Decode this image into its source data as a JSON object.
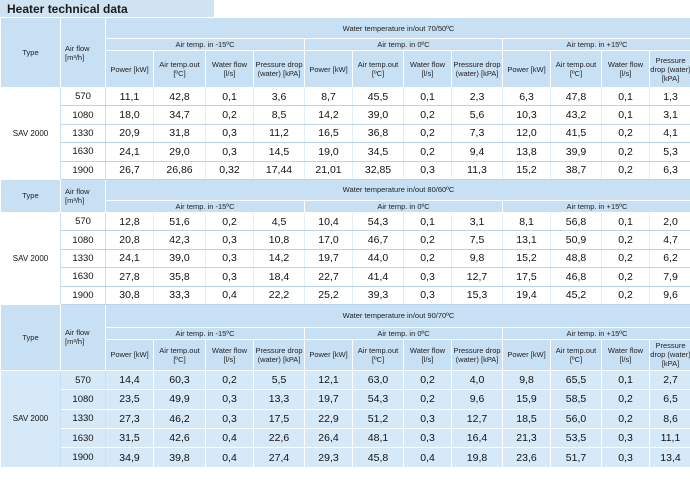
{
  "title": "Heater technical data",
  "labels": {
    "type": "Type",
    "airflow": "Air flow [m³/h]",
    "air_m15": "Air temp. in -15ºC",
    "air_0": "Air temp. in 0ºC",
    "air_p15": "Air temp. in +15ºC",
    "power": "Power [kW]",
    "temp_out": "Air temp.out [ºC]",
    "water_flow": "Water flow [l/s]",
    "pressure_drop": "Pressure drop (water) [kPA]"
  },
  "blocks": [
    {
      "water_temp": "Water temperature in/out 70/50ºC",
      "type": "SAV 2000",
      "rows": [
        {
          "airflow": "570",
          "values": [
            "11,1",
            "42,8",
            "0,1",
            "3,6",
            "8,7",
            "45,5",
            "0,1",
            "2,3",
            "6,3",
            "47,8",
            "0,1",
            "1,3"
          ]
        },
        {
          "airflow": "1080",
          "values": [
            "18,0",
            "34,7",
            "0,2",
            "8,5",
            "14,2",
            "39,0",
            "0,2",
            "5,6",
            "10,3",
            "43,2",
            "0,1",
            "3,1"
          ]
        },
        {
          "airflow": "1330",
          "values": [
            "20,9",
            "31,8",
            "0,3",
            "11,2",
            "16,5",
            "36,8",
            "0,2",
            "7,3",
            "12,0",
            "41,5",
            "0,2",
            "4,1"
          ]
        },
        {
          "airflow": "1630",
          "values": [
            "24,1",
            "29,0",
            "0,3",
            "14,5",
            "19,0",
            "34,5",
            "0,2",
            "9,4",
            "13,8",
            "39,9",
            "0,2",
            "5,3"
          ]
        },
        {
          "airflow": "1900",
          "values": [
            "26,7",
            "26,86",
            "0,32",
            "17,44",
            "21,01",
            "32,85",
            "0,3",
            "11,3",
            "15,2",
            "38,7",
            "0,2",
            "6,3"
          ]
        }
      ]
    },
    {
      "water_temp": "Water temperature in/out 80/60ºC",
      "type": "SAV 2000",
      "rows": [
        {
          "airflow": "570",
          "values": [
            "12,8",
            "51,6",
            "0,2",
            "4,5",
            "10,4",
            "54,3",
            "0,1",
            "3,1",
            "8,1",
            "56,8",
            "0,1",
            "2,0"
          ]
        },
        {
          "airflow": "1080",
          "values": [
            "20,8",
            "42,3",
            "0,3",
            "10,8",
            "17,0",
            "46,7",
            "0,2",
            "7,5",
            "13,1",
            "50,9",
            "0,2",
            "4,7"
          ]
        },
        {
          "airflow": "1330",
          "values": [
            "24,1",
            "39,0",
            "0,3",
            "14,2",
            "19,7",
            "44,0",
            "0,2",
            "9,8",
            "15,2",
            "48,8",
            "0,2",
            "6,2"
          ]
        },
        {
          "airflow": "1630",
          "values": [
            "27,8",
            "35,8",
            "0,3",
            "18,4",
            "22,7",
            "41,4",
            "0,3",
            "12,7",
            "17,5",
            "46,8",
            "0,2",
            "7,9"
          ]
        },
        {
          "airflow": "1900",
          "values": [
            "30,8",
            "33,3",
            "0,4",
            "22,2",
            "25,2",
            "39,3",
            "0,3",
            "15,3",
            "19,4",
            "45,2",
            "0,2",
            "9,6"
          ]
        }
      ]
    },
    {
      "water_temp": "Water temperature in/out 90/70ºC",
      "type": "SAV 2000",
      "rows": [
        {
          "airflow": "570",
          "values": [
            "14,4",
            "60,3",
            "0,2",
            "5,5",
            "12,1",
            "63,0",
            "0,2",
            "4,0",
            "9,8",
            "65,5",
            "0,1",
            "2,7"
          ]
        },
        {
          "airflow": "1080",
          "values": [
            "23,5",
            "49,9",
            "0,3",
            "13,3",
            "19,7",
            "54,3",
            "0,2",
            "9,6",
            "15,9",
            "58,5",
            "0,2",
            "6,5"
          ]
        },
        {
          "airflow": "1330",
          "values": [
            "27,3",
            "46,2",
            "0,3",
            "17,5",
            "22,9",
            "51,2",
            "0,3",
            "12,7",
            "18,5",
            "56,0",
            "0,2",
            "8,6"
          ]
        },
        {
          "airflow": "1630",
          "values": [
            "31,5",
            "42,6",
            "0,4",
            "22,6",
            "26,4",
            "48,1",
            "0,3",
            "16,4",
            "21,3",
            "53,5",
            "0,3",
            "11,1"
          ]
        },
        {
          "airflow": "1900",
          "values": [
            "34,9",
            "39,8",
            "0,4",
            "27,4",
            "29,3",
            "45,8",
            "0,4",
            "19,8",
            "23,6",
            "51,7",
            "0,3",
            "13,4"
          ]
        }
      ]
    }
  ]
}
